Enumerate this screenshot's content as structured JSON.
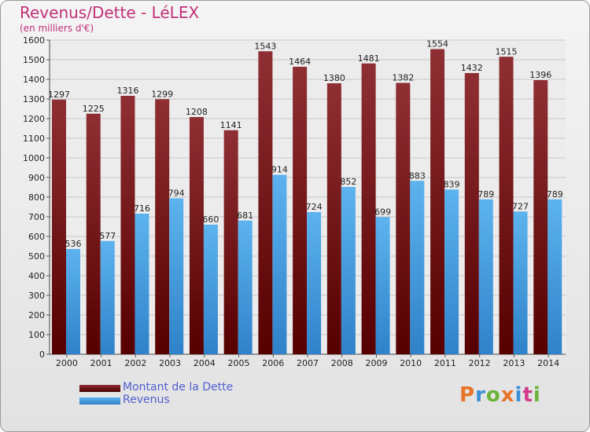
{
  "chart_data": {
    "type": "bar",
    "title": "Revenus/Dette - LéLEX",
    "subtitle": "(en milliers d'€)",
    "categories": [
      "2000",
      "2001",
      "2002",
      "2003",
      "2004",
      "2005",
      "2006",
      "2007",
      "2008",
      "2009",
      "2010",
      "2011",
      "2012",
      "2013",
      "2014"
    ],
    "series": [
      {
        "name": "Montant de la Dette",
        "color": "#7a1f22",
        "values": [
          1297,
          1225,
          1316,
          1299,
          1208,
          1141,
          1543,
          1464,
          1380,
          1481,
          1382,
          1554,
          1432,
          1515,
          1396
        ]
      },
      {
        "name": "Revenus",
        "color": "#4aa3e3",
        "values": [
          536,
          577,
          716,
          794,
          660,
          681,
          914,
          724,
          852,
          699,
          883,
          839,
          789,
          727,
          789
        ]
      }
    ],
    "ylim": [
      0,
      1600
    ],
    "yticks": [
      0,
      100,
      200,
      300,
      400,
      500,
      600,
      700,
      800,
      900,
      1000,
      1100,
      1200,
      1300,
      1400,
      1500,
      1600
    ],
    "grid": true,
    "legend_position": "bottom-left"
  },
  "logo": {
    "text": "Proxiti",
    "letter_colors": [
      "#e8742a",
      "#3a8fd8",
      "#6bb33a",
      "#e8742a",
      "#3a8fd8",
      "#d23b8a",
      "#6bb33a"
    ]
  }
}
